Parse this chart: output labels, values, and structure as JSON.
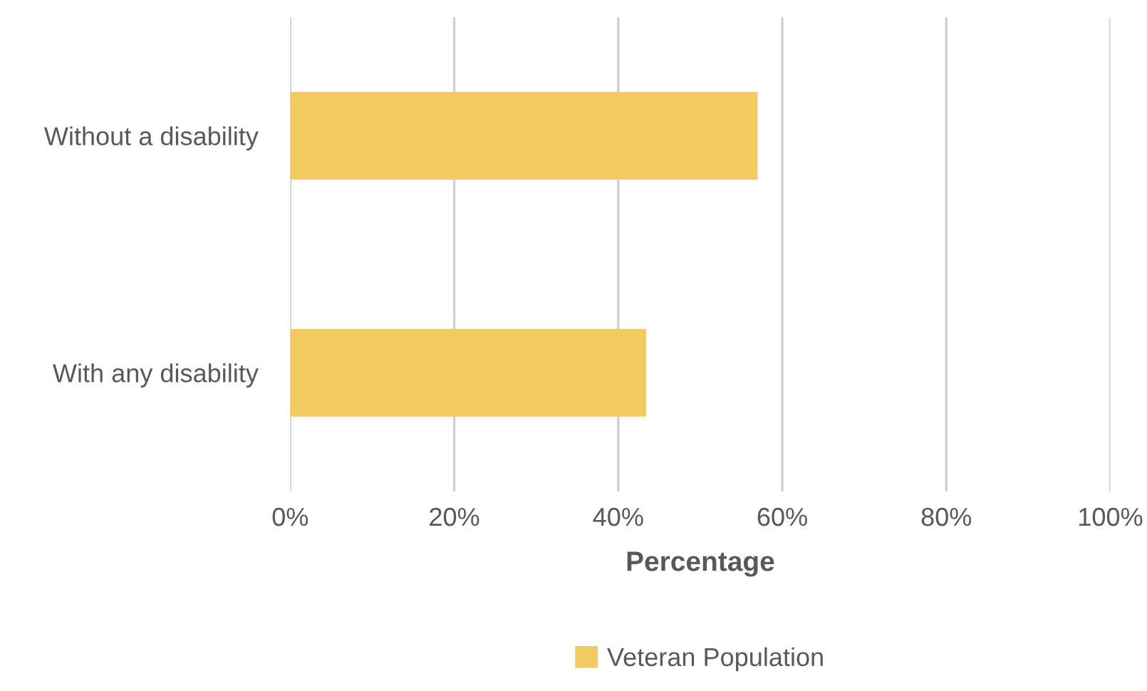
{
  "chart_data": {
    "type": "bar",
    "orientation": "horizontal",
    "xlabel": "Percentage",
    "categories": [
      "Without a disability",
      "With any disability"
    ],
    "series": [
      {
        "name": "Veteran Population",
        "color": "#f2ca5f",
        "values": [
          57,
          43.4
        ]
      }
    ],
    "xlim": [
      0,
      100
    ],
    "xticks": [
      {
        "value": 0,
        "label": "0%"
      },
      {
        "value": 20,
        "label": "20%"
      },
      {
        "value": 40,
        "label": "40%"
      },
      {
        "value": 60,
        "label": "60%"
      },
      {
        "value": 80,
        "label": "80%"
      },
      {
        "value": 100,
        "label": "100%"
      }
    ],
    "grid": "x",
    "legend": "bottom"
  }
}
